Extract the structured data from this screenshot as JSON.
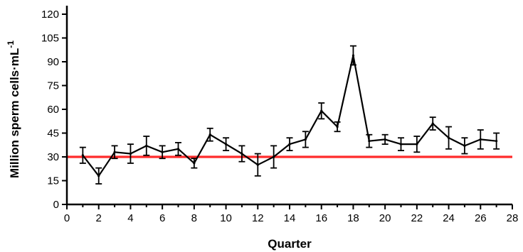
{
  "chart_data": {
    "type": "line",
    "title": "",
    "xlabel": "Quarter",
    "ylabel": "Million sperm cells·mL",
    "ylabel_superscript": "-1",
    "xlim": [
      0,
      28
    ],
    "ylim": [
      0,
      120
    ],
    "x_ticks": [
      0,
      2,
      4,
      6,
      8,
      10,
      12,
      14,
      16,
      18,
      20,
      22,
      24,
      26,
      28
    ],
    "y_ticks": [
      0,
      15,
      30,
      45,
      60,
      75,
      90,
      105,
      120
    ],
    "grid": false,
    "legend": "none",
    "series": [
      {
        "x": [
          1,
          2,
          3,
          4,
          5,
          6,
          7,
          8,
          9,
          10,
          11,
          12,
          13,
          14,
          15,
          16,
          17,
          18,
          19,
          20,
          21,
          22,
          23,
          24,
          25,
          26,
          27
        ],
        "y": [
          31,
          18,
          33,
          32,
          37,
          33,
          35,
          26,
          44,
          38,
          32,
          25,
          30,
          38,
          41,
          59,
          49,
          94,
          40,
          41,
          38,
          38,
          51,
          42,
          37,
          41,
          40
        ],
        "error": [
          5,
          5,
          4,
          6,
          6,
          4,
          4,
          3,
          4,
          4,
          5,
          7,
          7,
          4,
          5,
          5,
          3,
          6,
          4,
          3,
          4,
          5,
          4,
          7,
          5,
          6,
          5
        ],
        "color": "#000000"
      }
    ],
    "reference_line": {
      "y": 30,
      "color": "#ff2b2b"
    }
  }
}
